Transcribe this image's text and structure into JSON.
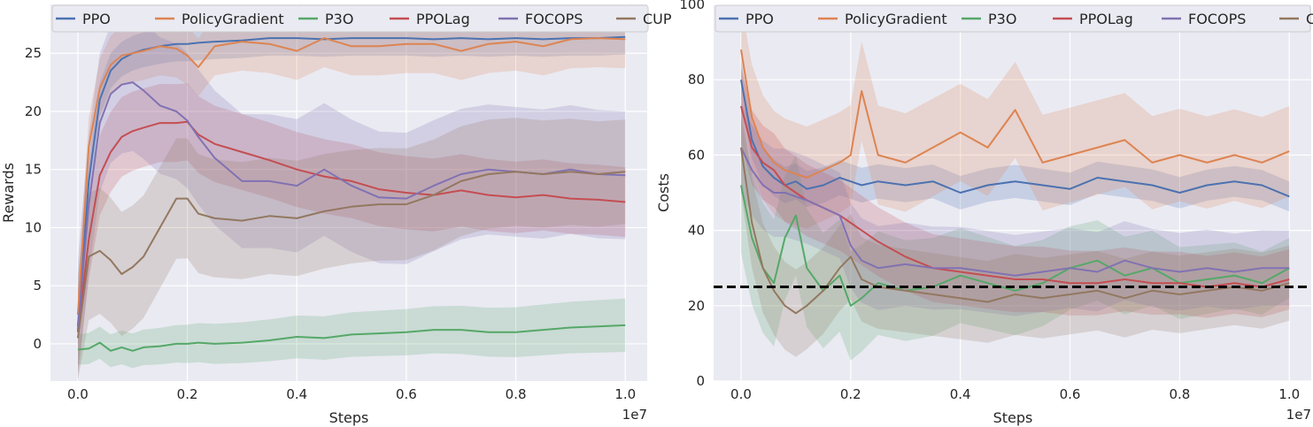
{
  "chart_data": [
    {
      "type": "line",
      "xlabel": "Steps",
      "ylabel": "Rewards",
      "x_offset_label": "1e7",
      "xlim": [
        -0.05,
        1.04
      ],
      "ylim": [
        -3.2,
        29.2
      ],
      "xticks": [
        0.0,
        0.2,
        0.4,
        0.6,
        0.8,
        1.0
      ],
      "xtick_labels": [
        "0.0",
        "0.2",
        "0.4",
        "0.6",
        "0.8",
        "1.0"
      ],
      "yticks": [
        0,
        5,
        10,
        15,
        20,
        25
      ],
      "ytick_labels": [
        "0",
        "5",
        "10",
        "15",
        "20",
        "25"
      ],
      "grid": true,
      "legend": "top",
      "x": [
        0.0,
        0.02,
        0.04,
        0.06,
        0.08,
        0.1,
        0.12,
        0.15,
        0.18,
        0.2,
        0.22,
        0.25,
        0.3,
        0.35,
        0.4,
        0.45,
        0.5,
        0.55,
        0.6,
        0.65,
        0.7,
        0.75,
        0.8,
        0.85,
        0.9,
        0.95,
        1.0
      ],
      "series": [
        {
          "name": "PPO",
          "color": "#4c72b0",
          "values": [
            1.5,
            14.0,
            21.0,
            23.5,
            24.5,
            25.0,
            25.3,
            25.6,
            25.8,
            25.8,
            25.9,
            26.0,
            26.1,
            26.3,
            26.3,
            26.2,
            26.3,
            26.3,
            26.3,
            26.2,
            26.3,
            26.2,
            26.3,
            26.2,
            26.3,
            26.3,
            26.4
          ],
          "band": [
            1.5,
            1.5
          ]
        },
        {
          "name": "PolicyGradient",
          "color": "#dd8452",
          "values": [
            2.5,
            17.0,
            22.0,
            24.0,
            24.8,
            25.0,
            25.2,
            25.6,
            25.4,
            24.8,
            23.8,
            25.6,
            26.0,
            25.8,
            25.2,
            26.3,
            25.6,
            25.6,
            25.8,
            25.8,
            25.2,
            25.8,
            26.0,
            25.6,
            26.2,
            26.3,
            26.2
          ],
          "band": [
            2.5,
            2.5
          ]
        },
        {
          "name": "P3O",
          "color": "#55a868",
          "values": [
            -0.5,
            -0.4,
            0.1,
            -0.6,
            -0.3,
            -0.6,
            -0.3,
            -0.2,
            0.0,
            0.0,
            0.1,
            0.0,
            0.1,
            0.3,
            0.6,
            0.5,
            0.8,
            0.9,
            1.0,
            1.2,
            1.2,
            1.0,
            1.0,
            1.2,
            1.4,
            1.5,
            1.6
          ],
          "band": [
            1.3,
            2.3
          ]
        },
        {
          "name": "PPOLag",
          "color": "#c44e52",
          "values": [
            1.0,
            9.0,
            14.5,
            16.5,
            17.8,
            18.3,
            18.6,
            19.0,
            19.0,
            19.1,
            18.0,
            17.2,
            16.5,
            15.8,
            15.0,
            14.4,
            14.0,
            13.3,
            13.0,
            12.8,
            13.2,
            12.8,
            12.6,
            12.8,
            12.5,
            12.4,
            12.2
          ],
          "band": [
            3.5,
            3.0
          ]
        },
        {
          "name": "FOCOPS",
          "color": "#8172b2",
          "values": [
            1.2,
            12.0,
            19.0,
            21.5,
            22.3,
            22.5,
            21.8,
            20.5,
            20.0,
            19.2,
            17.8,
            16.0,
            14.0,
            14.0,
            13.6,
            15.0,
            13.6,
            12.6,
            12.5,
            13.6,
            14.6,
            15.0,
            14.8,
            14.6,
            15.0,
            14.6,
            14.5
          ],
          "band": [
            6.0,
            5.5
          ]
        },
        {
          "name": "CUP",
          "color": "#937860",
          "values": [
            0.5,
            7.5,
            8.0,
            7.2,
            6.0,
            6.6,
            7.5,
            10.0,
            12.5,
            12.5,
            11.2,
            10.8,
            10.6,
            11.0,
            10.8,
            11.4,
            11.8,
            12.0,
            12.0,
            12.8,
            14.0,
            14.6,
            14.8,
            14.6,
            14.8,
            14.6,
            14.8
          ],
          "band": [
            5.5,
            4.5
          ]
        }
      ]
    },
    {
      "type": "line",
      "xlabel": "Steps",
      "ylabel": "Costs",
      "x_offset_label": "1e7",
      "xlim": [
        -0.05,
        1.04
      ],
      "ylim": [
        0,
        100
      ],
      "xticks": [
        0.0,
        0.2,
        0.4,
        0.6,
        0.8,
        1.0
      ],
      "xtick_labels": [
        "0.0",
        "0.2",
        "0.4",
        "0.6",
        "0.8",
        "1.0"
      ],
      "yticks": [
        0,
        20,
        40,
        60,
        80,
        100
      ],
      "ytick_labels": [
        "0",
        "20",
        "40",
        "60",
        "80",
        "100"
      ],
      "grid": true,
      "legend": "top",
      "threshold": 25,
      "x": [
        0.0,
        0.02,
        0.04,
        0.06,
        0.08,
        0.1,
        0.12,
        0.15,
        0.18,
        0.2,
        0.22,
        0.25,
        0.3,
        0.35,
        0.4,
        0.45,
        0.5,
        0.55,
        0.6,
        0.65,
        0.7,
        0.75,
        0.8,
        0.85,
        0.9,
        0.95,
        1.0
      ],
      "series": [
        {
          "name": "PPO",
          "color": "#4c72b0",
          "values": [
            80,
            64,
            57,
            54,
            52,
            53,
            51,
            52,
            54,
            53,
            52,
            53,
            52,
            53,
            50,
            52,
            53,
            52,
            51,
            54,
            53,
            52,
            50,
            52,
            53,
            52,
            49
          ],
          "band": [
            5,
            4
          ]
        },
        {
          "name": "PolicyGradient",
          "color": "#dd8452",
          "values": [
            88,
            70,
            62,
            58,
            56,
            55,
            54,
            56,
            58,
            60,
            77,
            60,
            58,
            62,
            66,
            62,
            72,
            58,
            60,
            62,
            64,
            58,
            60,
            58,
            60,
            58,
            61
          ],
          "band": [
            14,
            12
          ]
        },
        {
          "name": "P3O",
          "color": "#55a868",
          "values": [
            52,
            38,
            30,
            26,
            38,
            44,
            30,
            24,
            28,
            20,
            22,
            26,
            24,
            25,
            28,
            26,
            24,
            26,
            30,
            32,
            28,
            30,
            26,
            27,
            28,
            26,
            30
          ],
          "band": [
            18,
            8
          ]
        },
        {
          "name": "PPOLag",
          "color": "#c44e52",
          "values": [
            73,
            62,
            58,
            56,
            52,
            50,
            48,
            46,
            44,
            42,
            40,
            37,
            33,
            30,
            29,
            28,
            27,
            27,
            26,
            26,
            27,
            26,
            26,
            25,
            26,
            25,
            27
          ],
          "band": [
            10,
            8
          ]
        },
        {
          "name": "FOCOPS",
          "color": "#8172b2",
          "values": [
            62,
            56,
            52,
            50,
            50,
            49,
            48,
            46,
            44,
            36,
            32,
            30,
            31,
            30,
            30,
            29,
            28,
            29,
            30,
            29,
            32,
            30,
            29,
            30,
            29,
            30,
            30
          ],
          "band": [
            12,
            10
          ]
        },
        {
          "name": "CUP",
          "color": "#937860",
          "values": [
            62,
            42,
            30,
            24,
            20,
            18,
            20,
            24,
            30,
            33,
            27,
            25,
            24,
            23,
            22,
            21,
            23,
            22,
            23,
            24,
            22,
            24,
            23,
            24,
            25,
            24,
            26
          ],
          "band": [
            12,
            10
          ]
        }
      ]
    }
  ]
}
